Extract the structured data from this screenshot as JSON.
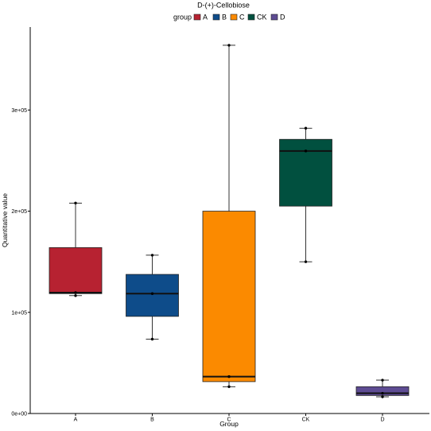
{
  "chart_data": {
    "type": "box",
    "title": "D-(+)-Cellobiose",
    "xlabel": "Group",
    "ylabel": "Quantitative value",
    "legend": {
      "title": "group",
      "position": "top",
      "entries": [
        "A",
        "B",
        "C",
        "CK",
        "D"
      ]
    },
    "categories": [
      "A",
      "B",
      "C",
      "CK",
      "D"
    ],
    "ylim": [
      0,
      380000
    ],
    "yticks": [
      {
        "value": 0,
        "label": "0e+00"
      },
      {
        "value": 100000,
        "label": "1e+05"
      },
      {
        "value": 200000,
        "label": "2e+05"
      },
      {
        "value": 300000,
        "label": "3e+05"
      }
    ],
    "grid": false,
    "boxes": [
      {
        "group": "A",
        "min": 116500,
        "q1": 118500,
        "median": 119500,
        "q3": 164000,
        "max": 208000,
        "color": "#B72231",
        "points": [
          116500,
          119500,
          208000
        ]
      },
      {
        "group": "B",
        "min": 73500,
        "q1": 96000,
        "median": 118500,
        "q3": 137500,
        "max": 156500,
        "color": "#0E4C8A",
        "points": [
          73500,
          118500,
          156500
        ]
      },
      {
        "group": "C",
        "min": 26500,
        "q1": 31500,
        "median": 36500,
        "q3": 200000,
        "max": 364000,
        "color": "#FB8A00",
        "points": [
          26500,
          36500,
          364000
        ]
      },
      {
        "group": "CK",
        "min": 150000,
        "q1": 205000,
        "median": 259500,
        "q3": 271000,
        "max": 282000,
        "color": "#01503F",
        "points": [
          150000,
          259500,
          282000
        ]
      },
      {
        "group": "D",
        "min": 16500,
        "q1": 17800,
        "median": 20000,
        "q3": 26500,
        "max": 33000,
        "color": "#5E4C93",
        "points": [
          16500,
          20000,
          33000
        ]
      }
    ]
  }
}
